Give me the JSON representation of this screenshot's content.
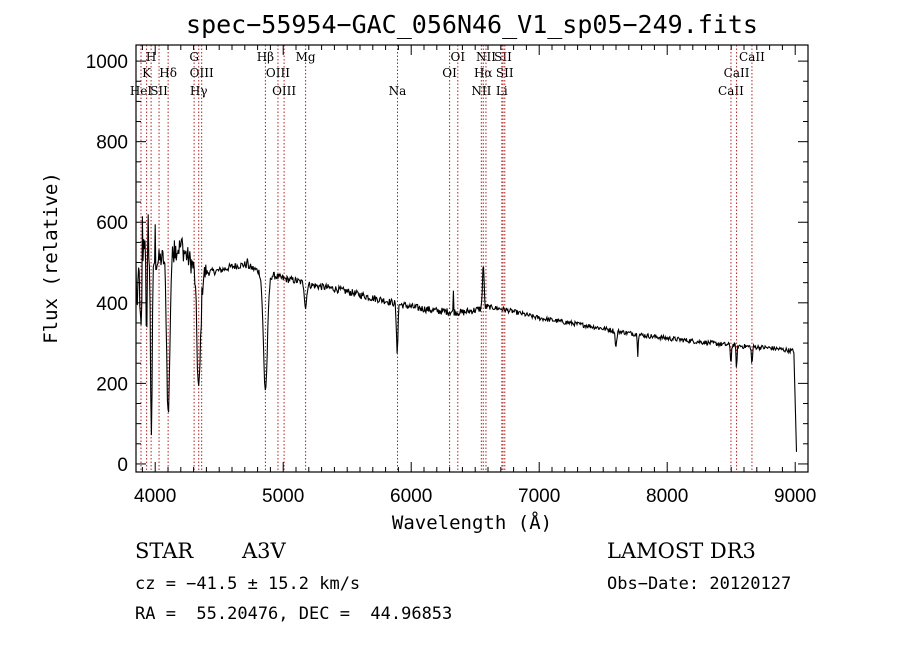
{
  "chart_data": {
    "type": "line",
    "title": "spec−55954−GAC_056N46_V1_sp05−249.fits",
    "xlabel": "Wavelength (Å)",
    "ylabel": "Flux (relative)",
    "xlim": [
      3850,
      9100
    ],
    "ylim": [
      -20,
      1040
    ],
    "xticks": [
      4000,
      5000,
      6000,
      7000,
      8000,
      9000
    ],
    "yticks": [
      0,
      200,
      400,
      600,
      800,
      1000
    ],
    "line_color": "#000000",
    "marker_color": "#b22222",
    "continuum": [
      [
        3850,
        520
      ],
      [
        3900,
        560
      ],
      [
        3950,
        540
      ],
      [
        4000,
        500
      ],
      [
        4050,
        510
      ],
      [
        4100,
        510
      ],
      [
        4150,
        530
      ],
      [
        4200,
        540
      ],
      [
        4250,
        515
      ],
      [
        4300,
        490
      ],
      [
        4350,
        470
      ],
      [
        4400,
        475
      ],
      [
        4500,
        480
      ],
      [
        4600,
        490
      ],
      [
        4700,
        495
      ],
      [
        4800,
        480
      ],
      [
        4900,
        470
      ],
      [
        5000,
        460
      ],
      [
        5100,
        455
      ],
      [
        5200,
        445
      ],
      [
        5300,
        440
      ],
      [
        5400,
        435
      ],
      [
        5500,
        428
      ],
      [
        5600,
        420
      ],
      [
        5700,
        412
      ],
      [
        5800,
        405
      ],
      [
        5900,
        397
      ],
      [
        6000,
        390
      ],
      [
        6100,
        385
      ],
      [
        6200,
        380
      ],
      [
        6300,
        378
      ],
      [
        6400,
        376
      ],
      [
        6500,
        382
      ],
      [
        6600,
        390
      ],
      [
        6700,
        385
      ],
      [
        6800,
        378
      ],
      [
        6900,
        370
      ],
      [
        7000,
        362
      ],
      [
        7200,
        352
      ],
      [
        7400,
        342
      ],
      [
        7600,
        330
      ],
      [
        7800,
        320
      ],
      [
        8000,
        312
      ],
      [
        8200,
        305
      ],
      [
        8400,
        298
      ],
      [
        8600,
        292
      ],
      [
        8800,
        288
      ],
      [
        8950,
        282
      ],
      [
        8990,
        280
      ]
    ],
    "absorption_features": [
      {
        "center": 3860,
        "depth": 140,
        "width": 6
      },
      {
        "center": 3889,
        "depth": 220,
        "width": 9
      },
      {
        "center": 3933,
        "depth": 250,
        "width": 4
      },
      {
        "center": 3970,
        "depth": 440,
        "width": 7
      },
      {
        "center": 4102,
        "depth": 390,
        "width": 12
      },
      {
        "center": 4340,
        "depth": 290,
        "width": 14
      },
      {
        "center": 4861,
        "depth": 290,
        "width": 16
      },
      {
        "center": 5175,
        "depth": 60,
        "width": 8
      },
      {
        "center": 5890,
        "depth": 120,
        "width": 6
      },
      {
        "center": 6563,
        "depth": -110,
        "width": 6
      },
      {
        "center": 7600,
        "depth": 40,
        "width": 6
      },
      {
        "center": 7770,
        "depth": 50,
        "width": 3
      },
      {
        "center": 8498,
        "depth": 45,
        "width": 4
      },
      {
        "center": 8542,
        "depth": 55,
        "width": 4
      },
      {
        "center": 8662,
        "depth": 45,
        "width": 4
      }
    ],
    "spikes": [
      {
        "x": 3900,
        "y": 615
      },
      {
        "x": 3945,
        "y": 620
      },
      {
        "x": 4000,
        "y": 595
      },
      {
        "x": 4150,
        "y": 555
      },
      {
        "x": 4210,
        "y": 560
      },
      {
        "x": 4720,
        "y": 510
      },
      {
        "x": 6330,
        "y": 430
      }
    ],
    "end_points": [
      {
        "x": 9010,
        "y": 30
      }
    ],
    "spectral_lines": [
      {
        "label": "K",
        "x": 3933,
        "row": 1
      },
      {
        "label": "H",
        "x": 3968,
        "row": 0
      },
      {
        "label": "HeI",
        "x": 3889,
        "row": 2
      },
      {
        "label": "SII",
        "x": 4030,
        "row": 2
      },
      {
        "label": "Hδ",
        "x": 4101,
        "row": 1
      },
      {
        "label": "G",
        "x": 4304,
        "row": 0
      },
      {
        "label": "OIII",
        "x": 4363,
        "row": 1
      },
      {
        "label": "Hγ",
        "x": 4340,
        "row": 2
      },
      {
        "label": "Hβ",
        "x": 4861,
        "row": 0
      },
      {
        "label": "OIII",
        "x": 4959,
        "row": 1
      },
      {
        "label": "OIII",
        "x": 5007,
        "row": 2
      },
      {
        "label": "Mg",
        "x": 5175,
        "row": 0
      },
      {
        "label": "Na",
        "x": 5893,
        "row": 2
      },
      {
        "label": "OI",
        "x": 6300,
        "row": 1
      },
      {
        "label": "OI",
        "x": 6364,
        "row": 0
      },
      {
        "label": "NII",
        "x": 6548,
        "row": 2
      },
      {
        "label": "Hα",
        "x": 6563,
        "row": 1
      },
      {
        "label": "NII",
        "x": 6584,
        "row": 0
      },
      {
        "label": "SII",
        "x": 6717,
        "row": 0
      },
      {
        "label": "SII",
        "x": 6731,
        "row": 1
      },
      {
        "label": "Li",
        "x": 6708,
        "row": 2
      },
      {
        "label": "CaII",
        "x": 8498,
        "row": 2
      },
      {
        "label": "CaII",
        "x": 8542,
        "row": 1
      },
      {
        "label": "CaII",
        "x": 8662,
        "row": 0
      }
    ]
  },
  "info": {
    "class": "STAR",
    "subclass": "A3V",
    "survey": "LAMOST DR3",
    "redshift": "cz = −41.5 ± 15.2 km/s",
    "obs_date": "Obs−Date: 20120127",
    "coords": "RA =  55.20476, DEC =  44.96853"
  }
}
